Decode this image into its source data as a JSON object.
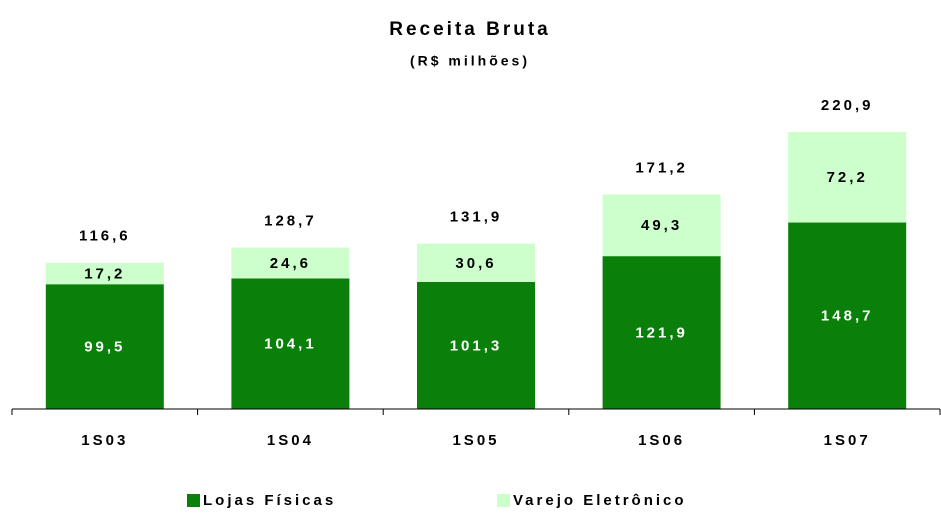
{
  "chart_data": {
    "type": "stacked_bar",
    "title": "Receita Bruta",
    "subtitle": "(R$ milhões)",
    "categories": [
      "1S03",
      "1S04",
      "1S05",
      "1S06",
      "1S07"
    ],
    "series": [
      {
        "name": "Lojas Físicas",
        "color": "#0a800a",
        "values": [
          99.5,
          104.1,
          101.3,
          121.9,
          148.7
        ],
        "value_labels": [
          "99,5",
          "104,1",
          "101,3",
          "121,9",
          "148,7"
        ]
      },
      {
        "name": "Varejo Eletrônico",
        "color": "#ccffcc",
        "values": [
          17.2,
          24.6,
          30.6,
          49.3,
          72.2
        ],
        "value_labels": [
          "17,2",
          "24,6",
          "30,6",
          "49,3",
          "72,2"
        ]
      }
    ],
    "totals": {
      "values": [
        116.6,
        128.7,
        131.9,
        171.2,
        220.9
      ],
      "value_labels": [
        "116,6",
        "128,7",
        "131,9",
        "171,2",
        "220,9"
      ]
    }
  }
}
